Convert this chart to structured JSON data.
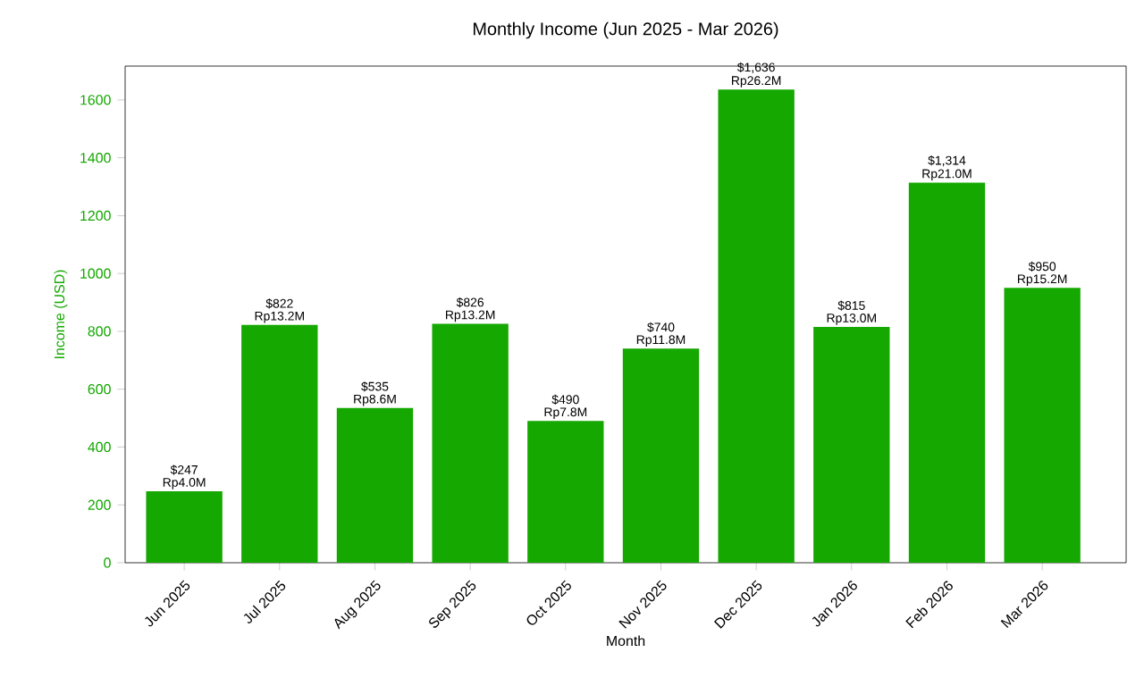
{
  "chart_data": {
    "type": "bar",
    "title": "Monthly Income (Jun 2025 - Mar 2026)",
    "xlabel": "Month",
    "ylabel": "Income (USD)",
    "categories": [
      "Jun 2025",
      "Jul 2025",
      "Aug 2025",
      "Sep 2025",
      "Oct 2025",
      "Nov 2025",
      "Dec 2025",
      "Jan 2026",
      "Feb 2026",
      "Mar 2026"
    ],
    "values": [
      247,
      822,
      535,
      826,
      490,
      740,
      1636,
      815,
      1314,
      950
    ],
    "value_labels": [
      "$247",
      "$822",
      "$535",
      "$826",
      "$490",
      "$740",
      "$1,636",
      "$815",
      "$1,314",
      "$950"
    ],
    "annotations": [
      {
        "text": "Rp4.0M",
        "x": "Jun 2025",
        "y": 247
      },
      {
        "text": "Rp13.2M",
        "x": "Jul 2025",
        "y": 822
      },
      {
        "text": "Rp8.6M",
        "x": "Aug 2025",
        "y": 535
      },
      {
        "text": "Rp13.2M",
        "x": "Sep 2025",
        "y": 826
      },
      {
        "text": "Rp7.8M",
        "x": "Oct 2025",
        "y": 490
      },
      {
        "text": "Rp11.8M",
        "x": "Nov 2025",
        "y": 740
      },
      {
        "text": "Rp26.2M",
        "x": "Dec 2025",
        "y": 1636
      },
      {
        "text": "Rp13.0M",
        "x": "Jan 2026",
        "y": 815
      },
      {
        "text": "Rp21.0M",
        "x": "Feb 2026",
        "y": 1314
      },
      {
        "text": "Rp15.2M",
        "x": "Mar 2026",
        "y": 950
      }
    ],
    "color": "#14a800",
    "ylim": [
      0,
      1717
    ],
    "yticks": [
      0,
      200,
      400,
      600,
      800,
      1000,
      1200,
      1400,
      1600
    ],
    "grid": false
  }
}
